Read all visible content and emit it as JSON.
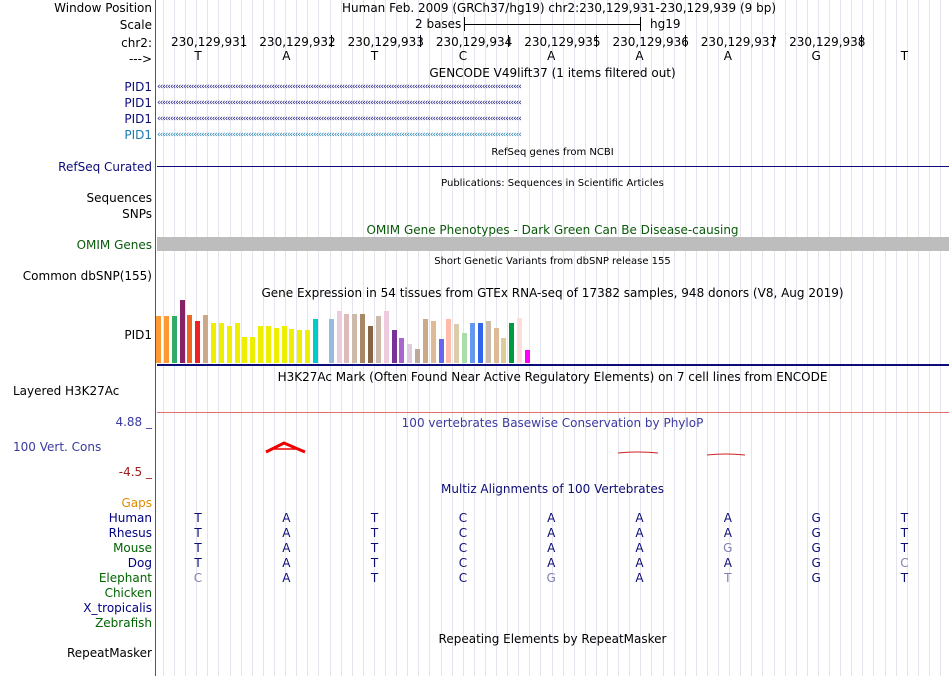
{
  "header": {
    "window_position_label": "Window Position",
    "window_position_value": "Human Feb. 2009 (GRCh37/hg19)   chr2:230,129,931-230,129,939 (9 bp)",
    "scale_label": "Scale",
    "scale_value": "2 bases",
    "scale_assembly": "hg19",
    "chrom_label": "chr2:",
    "strand_label": "--->",
    "positions": [
      "230,129,931",
      "230,129,932",
      "230,129,933",
      "230,129,934",
      "230,129,935",
      "230,129,936",
      "230,129,937",
      "230,129,938"
    ],
    "bases": [
      "T",
      "A",
      "T",
      "C",
      "A",
      "A",
      "A",
      "G",
      "T"
    ]
  },
  "gencode": {
    "title": "GENCODE V49lift37 (1 items filtered out)",
    "genes": [
      "PID1",
      "PID1",
      "PID1",
      "PID1"
    ]
  },
  "refseq": {
    "title": "RefSeq genes from NCBI",
    "label": "RefSeq Curated"
  },
  "publications": {
    "title": "Publications: Sequences in Scientific Articles",
    "label1": "Sequences",
    "label2": "SNPs"
  },
  "omim": {
    "title": "OMIM Gene Phenotypes - Dark Green Can Be Disease-causing",
    "label": "OMIM Genes"
  },
  "dbsnp": {
    "title": "Short Genetic Variants from dbSNP release 155",
    "label": "Common dbSNP(155)"
  },
  "gtex": {
    "title": "Gene Expression in 54 tissues from GTEx RNA-seq of 17382 samples, 948 donors (V8, Aug 2019)",
    "label": "PID1",
    "bars": [
      {
        "v": 0.74,
        "c": "#ff9933"
      },
      {
        "v": 0.74,
        "c": "#ff9933"
      },
      {
        "v": 0.74,
        "c": "#33aa66"
      },
      {
        "v": 1.0,
        "c": "#882266"
      },
      {
        "v": 0.76,
        "c": "#ee6622"
      },
      {
        "v": 0.66,
        "c": "#ee2222"
      },
      {
        "v": 0.76,
        "c": "#ccaa88"
      },
      {
        "v": 0.64,
        "c": "#eeee00"
      },
      {
        "v": 0.64,
        "c": "#eeee00"
      },
      {
        "v": 0.58,
        "c": "#eeee00"
      },
      {
        "v": 0.64,
        "c": "#eeee00"
      },
      {
        "v": 0.42,
        "c": "#eeee00"
      },
      {
        "v": 0.42,
        "c": "#eeee00"
      },
      {
        "v": 0.58,
        "c": "#eeee00"
      },
      {
        "v": 0.58,
        "c": "#eeee00"
      },
      {
        "v": 0.56,
        "c": "#eeee00"
      },
      {
        "v": 0.58,
        "c": "#eeee00"
      },
      {
        "v": 0.54,
        "c": "#eeee00"
      },
      {
        "v": 0.52,
        "c": "#eeee00"
      },
      {
        "v": 0.52,
        "c": "#eeee00"
      },
      {
        "v": 0.7,
        "c": "#00cccc"
      },
      {
        "v": 0.0,
        "c": "#ffffff"
      },
      {
        "v": 0.7,
        "c": "#99bbdd"
      },
      {
        "v": 0.82,
        "c": "#eeccdd"
      },
      {
        "v": 0.78,
        "c": "#ddbbbb"
      },
      {
        "v": 0.78,
        "c": "#ccbbaa"
      },
      {
        "v": 0.78,
        "c": "#aa8866"
      },
      {
        "v": 0.58,
        "c": "#886644"
      },
      {
        "v": 0.74,
        "c": "#ccbbaa"
      },
      {
        "v": 0.82,
        "c": "#eeccdd"
      },
      {
        "v": 0.52,
        "c": "#773399"
      },
      {
        "v": 0.4,
        "c": "#aa66cc"
      },
      {
        "v": 0.3,
        "c": "#ddccdd"
      },
      {
        "v": 0.22,
        "c": "#bbaa99"
      },
      {
        "v": 0.7,
        "c": "#ccaa88"
      },
      {
        "v": 0.66,
        "c": "#ddbb99"
      },
      {
        "v": 0.38,
        "c": "#6666ee"
      },
      {
        "v": 0.7,
        "c": "#ffbbaa"
      },
      {
        "v": 0.62,
        "c": "#ddccaa"
      },
      {
        "v": 0.48,
        "c": "#aaddaa"
      },
      {
        "v": 0.64,
        "c": "#6699ee"
      },
      {
        "v": 0.64,
        "c": "#3366ee"
      },
      {
        "v": 0.66,
        "c": "#ccbbaa"
      },
      {
        "v": 0.56,
        "c": "#ddbb99"
      },
      {
        "v": 0.4,
        "c": "#ddcc99"
      },
      {
        "v": 0.64,
        "c": "#009944"
      },
      {
        "v": 0.72,
        "c": "#ffdddd"
      },
      {
        "v": 0.2,
        "c": "#ff00ff"
      }
    ]
  },
  "h3k27ac": {
    "title": "H3K27Ac Mark (Often Found Near Active Regulatory Elements) on 7 cell lines from ENCODE",
    "label": "Layered H3K27Ac"
  },
  "phylop": {
    "title": "100 vertebrates Basewise Conservation by PhyloP",
    "label": "100 Vert. Cons",
    "max": "4.88 _",
    "min": "-4.5 _"
  },
  "multiz": {
    "title": "Multiz Alignments of 100 Vertebrates",
    "gaps_label": "Gaps",
    "species": [
      {
        "name": "Human",
        "color": "#000080",
        "bases": [
          "T",
          "A",
          "T",
          "C",
          "A",
          "A",
          "A",
          "G",
          "T"
        ],
        "faint": [
          false,
          false,
          false,
          false,
          false,
          false,
          false,
          false,
          false
        ]
      },
      {
        "name": "Rhesus",
        "color": "#000080",
        "bases": [
          "T",
          "A",
          "T",
          "C",
          "A",
          "A",
          "A",
          "G",
          "T"
        ],
        "faint": [
          false,
          false,
          false,
          false,
          false,
          false,
          false,
          false,
          false
        ]
      },
      {
        "name": "Mouse",
        "color": "#006400",
        "bases": [
          "T",
          "A",
          "T",
          "C",
          "A",
          "A",
          "G",
          "G",
          "T"
        ],
        "faint": [
          false,
          false,
          false,
          false,
          false,
          false,
          true,
          false,
          false
        ]
      },
      {
        "name": "Dog",
        "color": "#000080",
        "bases": [
          "T",
          "A",
          "T",
          "C",
          "A",
          "A",
          "A",
          "G",
          "C"
        ],
        "faint": [
          false,
          false,
          false,
          false,
          false,
          false,
          false,
          false,
          true
        ]
      },
      {
        "name": "Elephant",
        "color": "#006400",
        "bases": [
          "C",
          "A",
          "T",
          "C",
          "G",
          "A",
          "T",
          "G",
          "T"
        ],
        "faint": [
          true,
          false,
          false,
          false,
          true,
          false,
          true,
          false,
          false
        ]
      },
      {
        "name": "Chicken",
        "color": "#006400",
        "bases": [],
        "faint": []
      },
      {
        "name": "X_tropicalis",
        "color": "#000080",
        "bases": [],
        "faint": []
      },
      {
        "name": "Zebrafish",
        "color": "#006400",
        "bases": [],
        "faint": []
      }
    ]
  },
  "repeatmasker": {
    "title": "Repeating Elements by RepeatMasker",
    "label": "RepeatMasker"
  }
}
